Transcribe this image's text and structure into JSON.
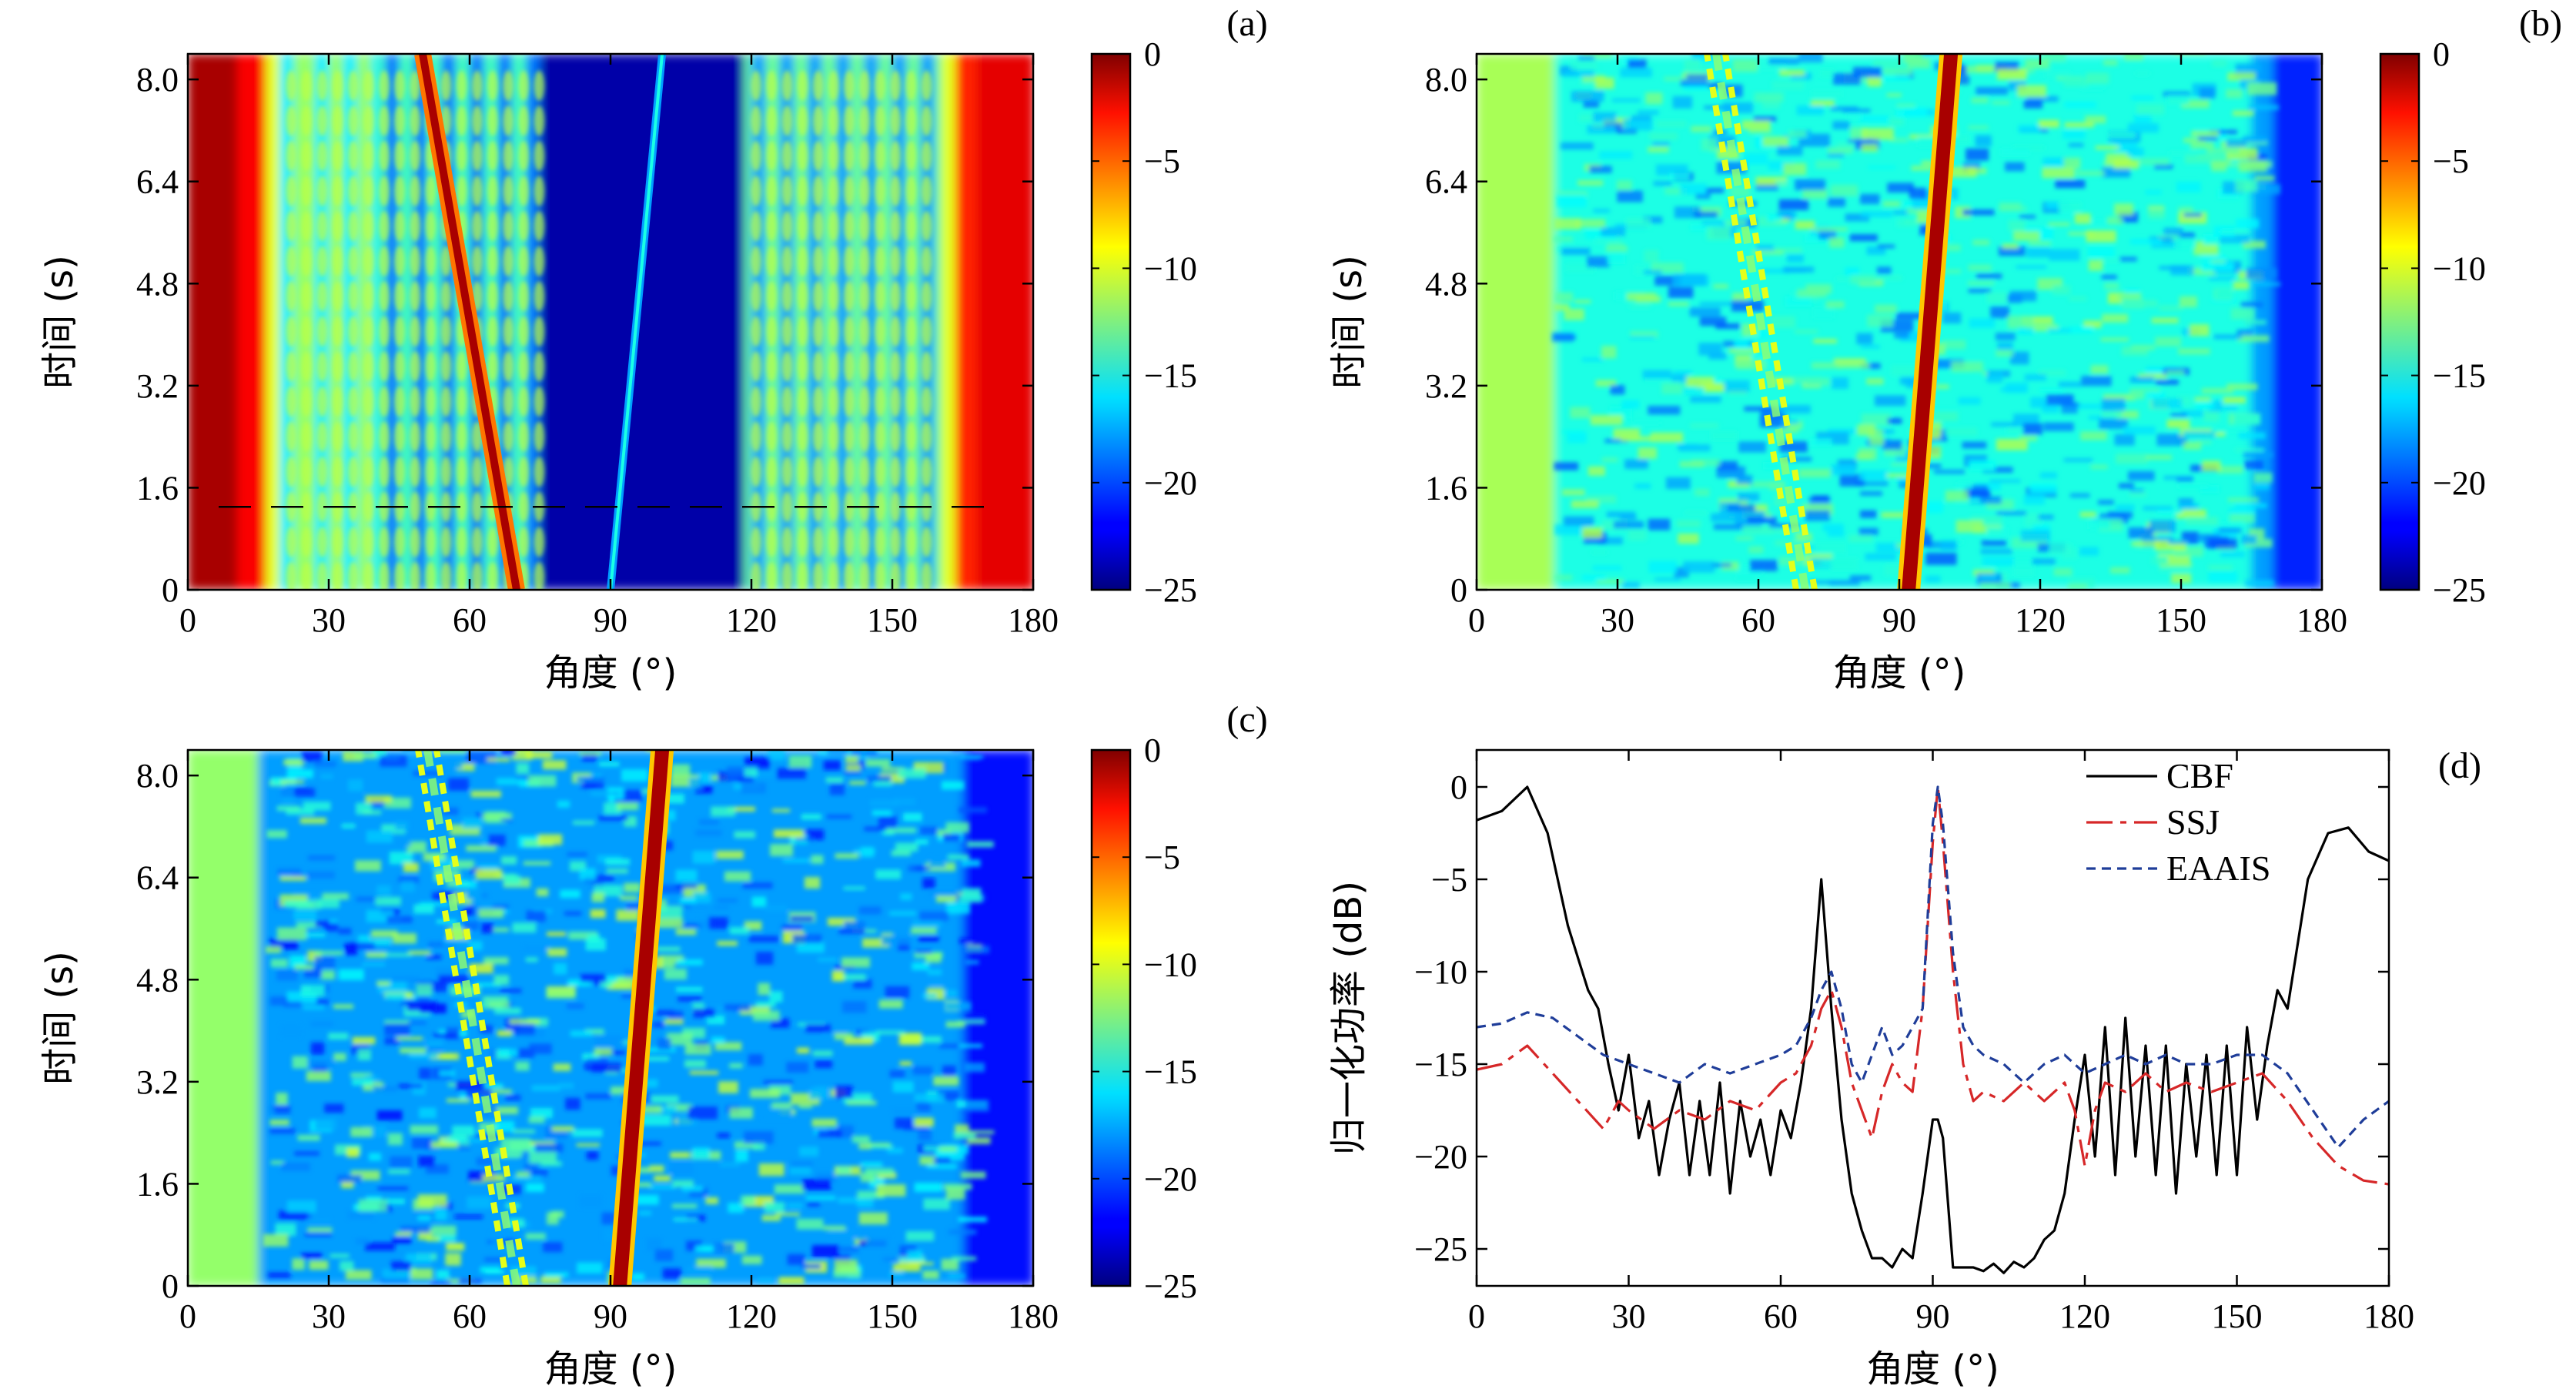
{
  "chart_data": [
    {
      "panel_label": "(a)",
      "type": "heatmap",
      "xlabel": "角度 (°)",
      "ylabel": "时间 (s)",
      "xlim": [
        0,
        180
      ],
      "ylim": [
        0,
        8.4
      ],
      "xticks": [
        "0",
        "30",
        "60",
        "90",
        "120",
        "150",
        "180"
      ],
      "yticks": [
        "0",
        "1.6",
        "3.2",
        "4.8",
        "6.4",
        "8.0"
      ],
      "colorbar": {
        "range": [
          -25,
          0
        ],
        "ticks": [
          "0",
          "−5",
          "−10",
          "−15",
          "−20",
          "−25"
        ]
      },
      "tracks": [
        {
          "angle_at_t0": 70,
          "angle_at_t8": 50
        },
        {
          "angle_at_t0": 90,
          "angle_at_t8": 101
        }
      ],
      "dashed_reference_time": 1.3
    },
    {
      "panel_label": "(b)",
      "type": "heatmap",
      "xlabel": "角度 (°)",
      "ylabel": "时间 (s)",
      "xlim": [
        0,
        180
      ],
      "ylim": [
        0,
        8.4
      ],
      "xticks": [
        "0",
        "30",
        "60",
        "90",
        "120",
        "150",
        "180"
      ],
      "yticks": [
        "0",
        "1.6",
        "3.2",
        "4.8",
        "6.4",
        "8.0"
      ],
      "colorbar": {
        "range": [
          -25,
          0
        ],
        "ticks": [
          "0",
          "−5",
          "−10",
          "−15",
          "−20",
          "−25"
        ]
      },
      "tracks": [
        {
          "angle_at_t0": 70,
          "angle_at_t8": 51
        },
        {
          "angle_at_t0": 92,
          "angle_at_t8": 101
        }
      ]
    },
    {
      "panel_label": "(c)",
      "type": "heatmap",
      "xlabel": "角度 (°)",
      "ylabel": "时间 (s)",
      "xlim": [
        0,
        180
      ],
      "ylim": [
        0,
        8.4
      ],
      "xticks": [
        "0",
        "30",
        "60",
        "90",
        "120",
        "150",
        "180"
      ],
      "yticks": [
        "0",
        "1.6",
        "3.2",
        "4.8",
        "6.4",
        "8.0"
      ],
      "colorbar": {
        "range": [
          -25,
          0
        ],
        "ticks": [
          "0",
          "−5",
          "−10",
          "−15",
          "−20",
          "−25"
        ]
      },
      "tracks": [
        {
          "angle_at_t0": 70,
          "angle_at_t8": 51
        },
        {
          "angle_at_t0": 92,
          "angle_at_t8": 101
        }
      ]
    },
    {
      "panel_label": "(d)",
      "type": "line",
      "xlabel": "角度 (°)",
      "ylabel": "归一化功率 (dB)",
      "xlim": [
        0,
        180
      ],
      "ylim": [
        -27,
        2
      ],
      "xticks": [
        "0",
        "30",
        "60",
        "90",
        "120",
        "150",
        "180"
      ],
      "yticks": [
        "0",
        "−5",
        "−10",
        "−15",
        "−20",
        "−25"
      ],
      "legend_position": "top-right",
      "series": [
        {
          "name": "CBF",
          "color": "#000000",
          "style": "solid",
          "x": [
            0,
            5,
            10,
            14,
            18,
            22,
            24,
            26,
            28,
            30,
            32,
            34,
            36,
            38,
            40,
            42,
            44,
            46,
            48,
            50,
            52,
            54,
            56,
            58,
            60,
            62,
            64,
            66,
            68,
            70,
            72,
            74,
            76,
            78,
            80,
            82,
            84,
            86,
            88,
            90,
            91,
            92,
            94,
            96,
            98,
            100,
            102,
            104,
            106,
            108,
            110,
            112,
            114,
            116,
            118,
            120,
            122,
            124,
            126,
            128,
            130,
            132,
            134,
            136,
            138,
            140,
            142,
            144,
            146,
            148,
            150,
            152,
            154,
            156,
            158,
            160,
            164,
            168,
            172,
            176,
            180
          ],
          "y": [
            -1.8,
            -1.3,
            0,
            -2.5,
            -7.5,
            -11,
            -12,
            -15,
            -17.5,
            -14.5,
            -19,
            -17,
            -21,
            -18,
            -16,
            -21,
            -17,
            -21,
            -16,
            -22,
            -17,
            -20,
            -18,
            -21,
            -17.5,
            -19,
            -16,
            -12,
            -5,
            -12,
            -18,
            -22,
            -24,
            -25.5,
            -25.5,
            -26,
            -25,
            -25.5,
            -22,
            -18,
            -18,
            -19,
            -26,
            -26,
            -26,
            -26.2,
            -25.8,
            -26.3,
            -25.7,
            -26,
            -25.5,
            -24.5,
            -24,
            -22,
            -18,
            -14.5,
            -20,
            -13,
            -21,
            -12.5,
            -20,
            -14,
            -21,
            -14,
            -22,
            -15,
            -20,
            -14.5,
            -21,
            -14,
            -21,
            -13,
            -18,
            -14,
            -11,
            -12,
            -5,
            -2.5,
            -2.2,
            -3.5,
            -4
          ]
        },
        {
          "name": "SSJ",
          "color": "#d62728",
          "style": "long-dash",
          "x": [
            0,
            5,
            10,
            15,
            20,
            25,
            28,
            30,
            35,
            40,
            45,
            50,
            55,
            60,
            63,
            66,
            68,
            70,
            72,
            74,
            76,
            78,
            80,
            82,
            84,
            86,
            88,
            90,
            91,
            92,
            94,
            96,
            98,
            100,
            104,
            108,
            112,
            116,
            118,
            120,
            122,
            124,
            128,
            132,
            136,
            140,
            145,
            150,
            155,
            160,
            165,
            170,
            175,
            180
          ],
          "y": [
            -15.3,
            -15,
            -14,
            -15.5,
            -17,
            -18.5,
            -17,
            -17.5,
            -18.5,
            -17.5,
            -18,
            -17,
            -17.5,
            -16,
            -15.5,
            -14,
            -12,
            -11,
            -13,
            -16,
            -17.5,
            -19,
            -16.5,
            -15,
            -16,
            -16.5,
            -12,
            -3,
            0,
            -3,
            -10,
            -15,
            -17,
            -16.5,
            -17,
            -16,
            -17,
            -16,
            -17.5,
            -20.5,
            -17.5,
            -16,
            -16.5,
            -15.5,
            -16.5,
            -16,
            -16.5,
            -16,
            -15.5,
            -17,
            -19,
            -20.5,
            -21.3,
            -21.5
          ]
        },
        {
          "name": "EAAIS",
          "color": "#1f3d99",
          "style": "short-dash",
          "x": [
            0,
            5,
            10,
            15,
            20,
            25,
            30,
            35,
            40,
            45,
            50,
            55,
            60,
            63,
            66,
            68,
            70,
            72,
            74,
            76,
            78,
            80,
            82,
            84,
            86,
            88,
            90,
            91,
            92,
            94,
            96,
            98,
            100,
            104,
            108,
            112,
            116,
            120,
            124,
            128,
            132,
            136,
            140,
            145,
            150,
            155,
            160,
            165,
            170,
            175,
            180
          ],
          "y": [
            -13,
            -12.8,
            -12.2,
            -12.5,
            -13.5,
            -14.5,
            -15,
            -15.5,
            -16,
            -15,
            -15.5,
            -15,
            -14.5,
            -14,
            -12.5,
            -11,
            -10,
            -12,
            -15,
            -16,
            -14.5,
            -13,
            -14.5,
            -14,
            -13,
            -12,
            -2,
            0,
            -2,
            -9,
            -13,
            -14,
            -14.5,
            -15,
            -16,
            -15,
            -14.5,
            -15.5,
            -15,
            -14.5,
            -15,
            -14.5,
            -15,
            -15,
            -14.5,
            -14.5,
            -15.5,
            -17.5,
            -19.5,
            -18,
            -17
          ]
        }
      ]
    }
  ]
}
